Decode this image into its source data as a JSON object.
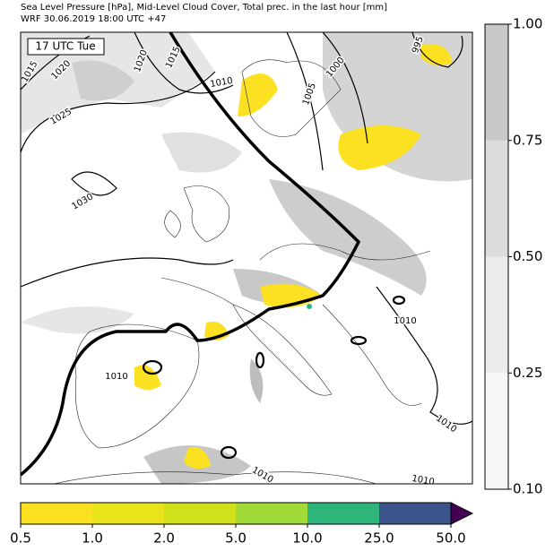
{
  "header": {
    "line1": "Sea Level Pressure [hPa], Mid-Level Cloud Cover, Total prec. in the last hour [mm]",
    "line2": "WRF 30.06.2019 18:00 UTC +47"
  },
  "map": {
    "time_label": "17 UTC Tue",
    "isobar_labels": [
      "1015",
      "1020",
      "1025",
      "1030",
      "1020",
      "1015",
      "1010",
      "1005",
      "1000",
      "995",
      "1010",
      "1010",
      "1010",
      "1010",
      "1010"
    ]
  },
  "cloud_colorbar": {
    "ticks": [
      {
        "value": 0.1,
        "label": "0.10"
      },
      {
        "value": 0.25,
        "label": "0.25"
      },
      {
        "value": 0.5,
        "label": "0.50"
      },
      {
        "value": 0.75,
        "label": "0.75"
      },
      {
        "value": 1,
        "label": "1.00"
      }
    ],
    "colors": [
      "#f7f7f7",
      "#ececec",
      "#dcdcdc",
      "#c8c8c8"
    ]
  },
  "precip_colorbar": {
    "ticks": [
      0.5,
      {
        "value": 1,
        "label": "1.0"
      },
      {
        "value": 2,
        "label": "2.0"
      },
      {
        "value": 5,
        "label": "5.0"
      },
      {
        "value": 10,
        "label": "10.0"
      },
      {
        "value": 25,
        "label": "25.0"
      },
      {
        "value": 50,
        "label": "50.0"
      }
    ],
    "colors": [
      "#fbe122",
      "#e8e419",
      "#d0e11c",
      "#a2da37",
      "#2fb47c",
      "#3b528b"
    ],
    "extend_color": "#440154"
  }
}
